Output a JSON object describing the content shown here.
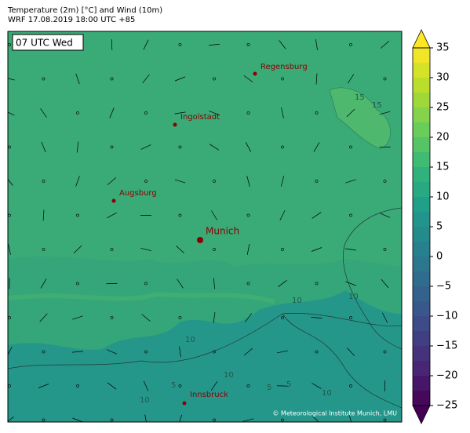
{
  "header": {
    "title": "Temperature (2m) [°C] and Wind (10m)",
    "subtitle": "WRF 17.08.2019 18:00 UTC +85"
  },
  "time_label": "07 UTC Wed",
  "cities": [
    {
      "name": "Regensburg"
    },
    {
      "name": "Ingolstadt"
    },
    {
      "name": "Augsburg"
    },
    {
      "name": "Munich"
    },
    {
      "name": "Innsbruck"
    }
  ],
  "contour_labels": [
    "15",
    "15",
    "10",
    "10",
    "10",
    "10",
    "5",
    "5",
    "10",
    "10",
    "5"
  ],
  "colorbar": {
    "range": [
      -25,
      35
    ],
    "ticks": [
      {
        "value": -25,
        "label": "−25"
      },
      {
        "value": -20,
        "label": "−20"
      },
      {
        "value": -15,
        "label": "−15"
      },
      {
        "value": -10,
        "label": "−10"
      },
      {
        "value": -5,
        "label": "−5"
      },
      0,
      5,
      10,
      15,
      20,
      25,
      30,
      35
    ]
  },
  "credit": "© Meteorological Institute Munich, LMU"
}
